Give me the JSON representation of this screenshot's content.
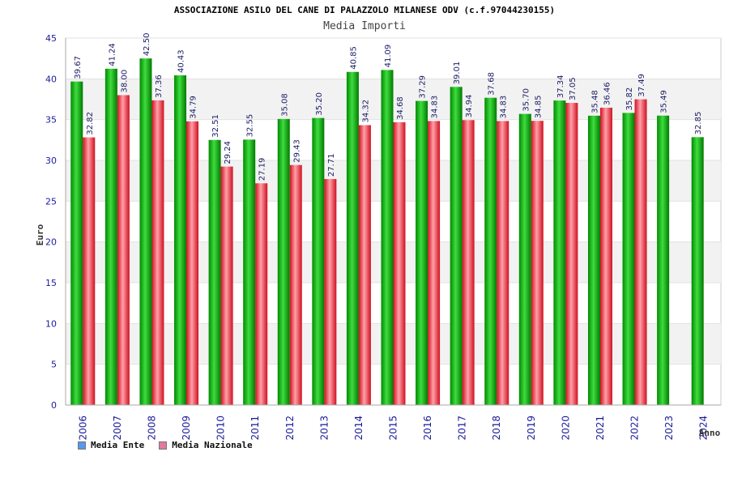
{
  "chart_data": {
    "type": "bar",
    "title": "ASSOCIAZIONE ASILO DEL CANE DI PALAZZOLO MILANESE ODV (c.f.97044230155)",
    "subtitle": "Media Importi",
    "ylabel": "Euro",
    "xlabel": "Anno",
    "ylim": [
      0,
      45
    ],
    "yticks": [
      "0",
      "5",
      "10",
      "15",
      "20",
      "25",
      "30",
      "35",
      "40",
      "45"
    ],
    "categories": [
      "2006",
      "2007",
      "2008",
      "2009",
      "2010",
      "2011",
      "2012",
      "2013",
      "2014",
      "2015",
      "2016",
      "2017",
      "2018",
      "2019",
      "2020",
      "2021",
      "2022",
      "2023",
      "2024"
    ],
    "series": [
      {
        "name": "Media Ente",
        "values": [
          39.67,
          41.24,
          42.5,
          40.43,
          32.51,
          32.55,
          35.08,
          35.2,
          40.85,
          41.09,
          37.29,
          39.01,
          37.68,
          35.7,
          37.34,
          35.48,
          35.82,
          35.49,
          32.85
        ],
        "labels": [
          "39.67",
          "41.24",
          "42.50",
          "40.43",
          "32.51",
          "32.55",
          "35.08",
          "35.20",
          "40.85",
          "41.09",
          "37.29",
          "39.01",
          "37.68",
          "35.70",
          "37.34",
          "35.48",
          "35.82",
          "35.49",
          "32.85"
        ]
      },
      {
        "name": "Media Nazionale",
        "values": [
          32.82,
          38.0,
          37.36,
          34.79,
          29.24,
          27.19,
          29.43,
          27.71,
          34.32,
          34.68,
          34.83,
          34.94,
          34.83,
          34.85,
          37.05,
          36.46,
          37.49,
          null,
          null
        ],
        "labels": [
          "32.82",
          "38.00",
          "37.36",
          "34.79",
          "29.24",
          "27.19",
          "29.43",
          "27.71",
          "34.32",
          "34.68",
          "34.83",
          "34.94",
          "34.83",
          "34.85",
          "37.05",
          "36.46",
          "37.49",
          "",
          ""
        ]
      }
    ],
    "legend": [
      "Media Ente",
      "Media Nazionale"
    ],
    "legend_placement": "bottom-left",
    "grid": true,
    "colors": {
      "ente_bar": "#16b516",
      "nazionale_bar": "#e8303e",
      "ente_legend": "#5599ee",
      "nazionale_legend": "#e07aa0",
      "band": "#f2f2f2",
      "tick_text": "#1a1a9a"
    }
  }
}
